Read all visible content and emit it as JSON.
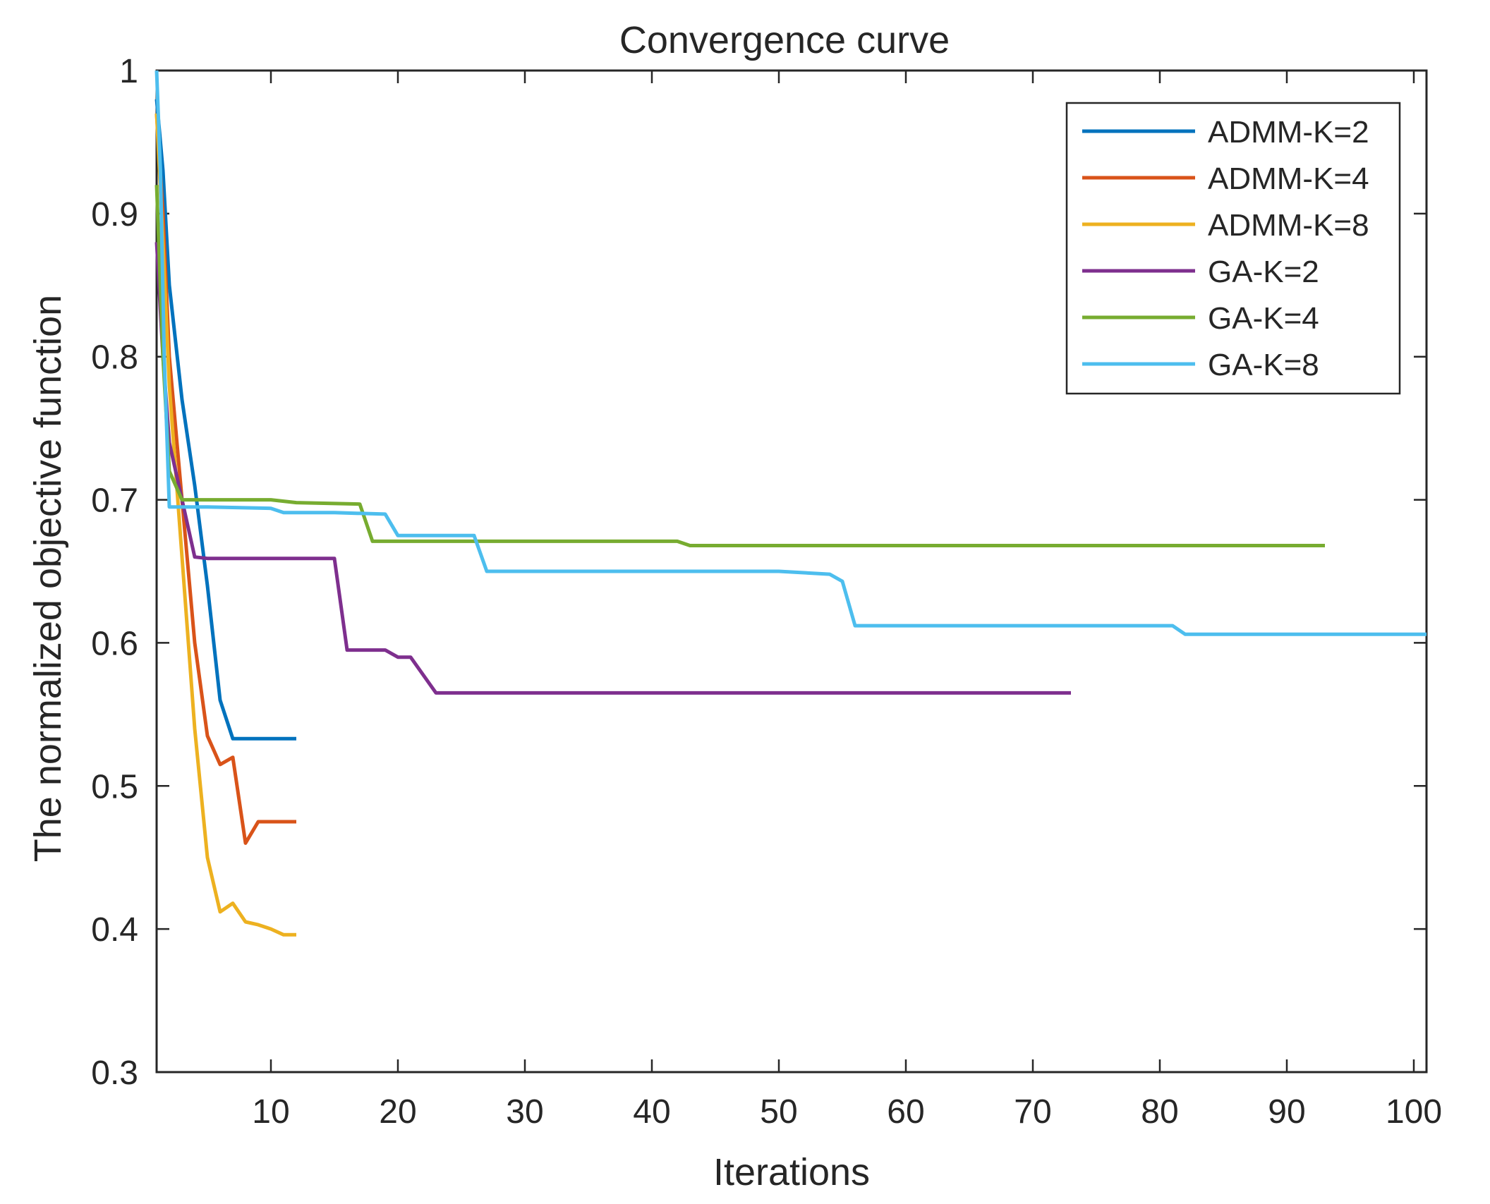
{
  "chart_data": {
    "type": "line",
    "title": "Convergence curve",
    "xlabel": "Iterations",
    "ylabel": "The normalized objective function",
    "xlim": [
      1,
      101
    ],
    "ylim": [
      0.3,
      1
    ],
    "xticks": [
      10,
      20,
      30,
      40,
      50,
      60,
      70,
      80,
      90,
      100
    ],
    "yticks": [
      0.3,
      0.4,
      0.5,
      0.6,
      0.7,
      0.8,
      0.9,
      1
    ],
    "ytick_labels": [
      "0.3",
      "0.4",
      "0.5",
      "0.6",
      "0.7",
      "0.8",
      "0.9",
      "1"
    ],
    "grid": false,
    "legend_position": "top-right",
    "series": [
      {
        "name": "ADMM-K=2",
        "color": "#0072BD",
        "x": [
          1,
          1.5,
          2,
          3,
          4,
          5,
          6,
          7,
          8,
          9,
          10,
          11,
          12
        ],
        "values": [
          0.98,
          0.93,
          0.85,
          0.77,
          0.71,
          0.64,
          0.56,
          0.533,
          0.533,
          0.533,
          0.533,
          0.533,
          0.533
        ]
      },
      {
        "name": "ADMM-K=4",
        "color": "#D95319",
        "x": [
          1,
          1.5,
          2,
          3,
          4,
          5,
          6,
          7,
          7.5,
          8,
          9,
          10,
          11,
          12
        ],
        "values": [
          0.97,
          0.9,
          0.8,
          0.7,
          0.6,
          0.535,
          0.515,
          0.52,
          0.49,
          0.46,
          0.475,
          0.475,
          0.475,
          0.475
        ]
      },
      {
        "name": "ADMM-K=8",
        "color": "#EDB120",
        "x": [
          1,
          1.5,
          2,
          3,
          4,
          5,
          6,
          7,
          8,
          9,
          10,
          11,
          12
        ],
        "values": [
          0.97,
          0.88,
          0.78,
          0.66,
          0.54,
          0.45,
          0.412,
          0.418,
          0.405,
          0.403,
          0.4,
          0.396,
          0.396
        ]
      },
      {
        "name": "GA-K=2",
        "color": "#7E2F8E",
        "x": [
          1,
          1.5,
          2,
          3,
          4,
          5,
          10,
          15,
          16,
          17,
          19,
          20,
          21,
          23,
          30,
          40,
          50,
          60,
          73
        ],
        "values": [
          0.88,
          0.8,
          0.74,
          0.7,
          0.66,
          0.659,
          0.659,
          0.659,
          0.595,
          0.595,
          0.595,
          0.59,
          0.59,
          0.565,
          0.565,
          0.565,
          0.565,
          0.565,
          0.565
        ]
      },
      {
        "name": "GA-K=4",
        "color": "#77AC30",
        "x": [
          1,
          1.5,
          2,
          3,
          5,
          10,
          12,
          17,
          18,
          20,
          26,
          30,
          42,
          43,
          50,
          60,
          70,
          80,
          93
        ],
        "values": [
          0.92,
          0.8,
          0.72,
          0.7,
          0.7,
          0.7,
          0.698,
          0.697,
          0.671,
          0.671,
          0.671,
          0.671,
          0.671,
          0.668,
          0.668,
          0.668,
          0.668,
          0.668,
          0.668
        ]
      },
      {
        "name": "GA-K=8",
        "color": "#4DBEEE",
        "x": [
          1,
          1.3,
          1.6,
          2,
          5,
          10,
          11,
          15,
          19,
          20,
          26,
          27,
          30,
          40,
          50,
          54,
          55,
          56,
          60,
          70,
          80,
          81,
          82,
          90,
          101
        ],
        "values": [
          1,
          0.93,
          0.8,
          0.695,
          0.695,
          0.694,
          0.691,
          0.691,
          0.69,
          0.675,
          0.675,
          0.65,
          0.65,
          0.65,
          0.65,
          0.648,
          0.643,
          0.612,
          0.612,
          0.612,
          0.612,
          0.612,
          0.606,
          0.606,
          0.606
        ]
      }
    ]
  }
}
